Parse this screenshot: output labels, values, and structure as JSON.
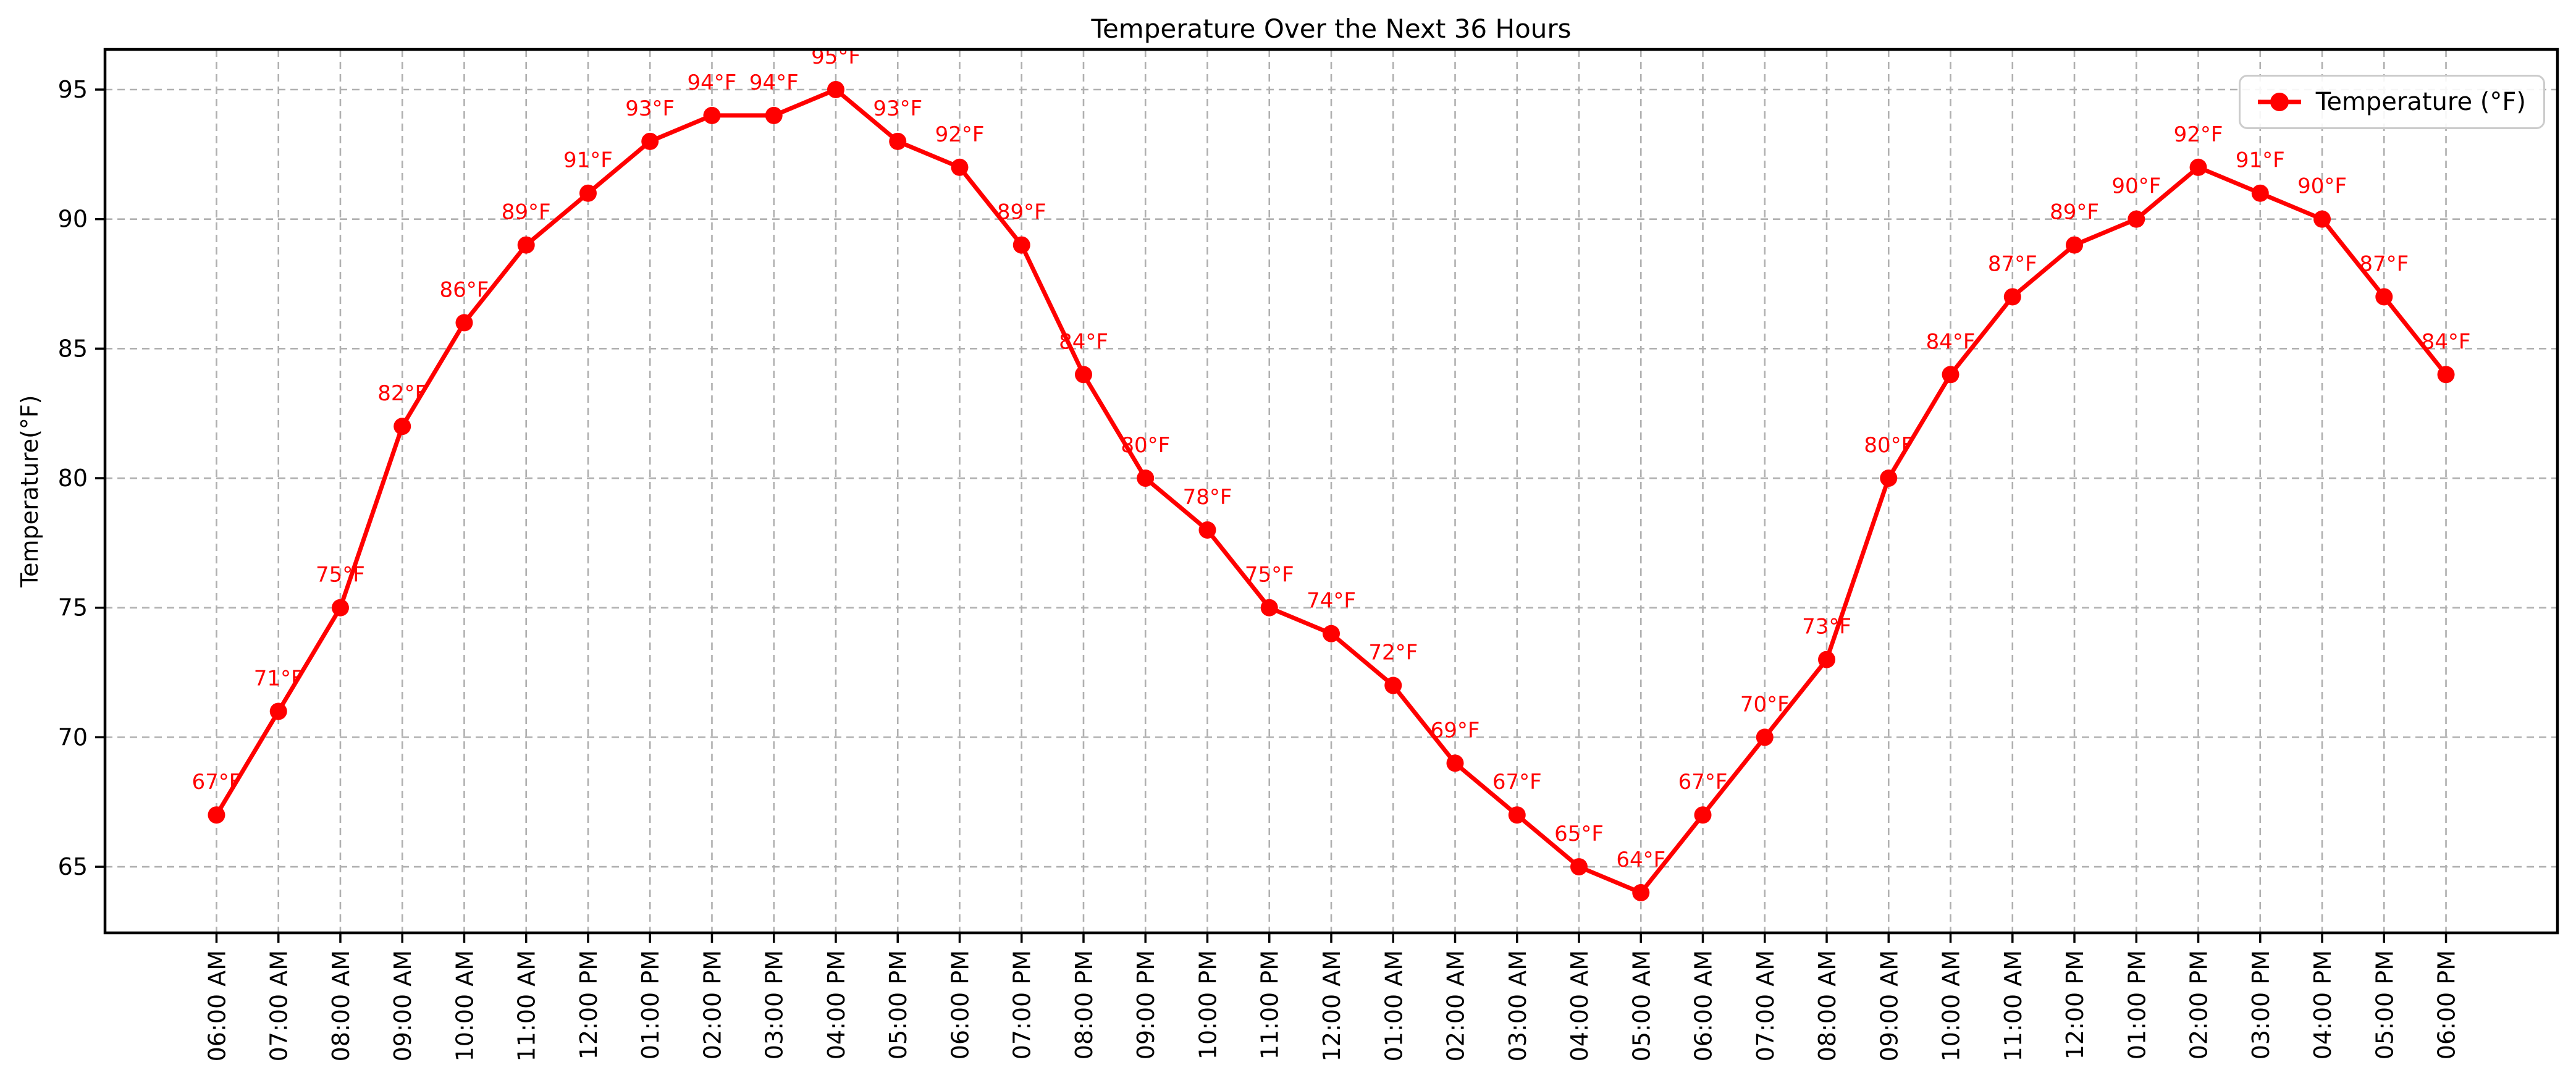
{
  "title": "Temperature Over the Next 36 Hours",
  "legend": {
    "label": "Temperature (°F)"
  },
  "colors": {
    "line": "#ff0000",
    "point_label": "#ff0000",
    "grid": "#b0b0b0",
    "axis": "#000000",
    "tick_text": "#000000",
    "legend_border": "#cccccc",
    "background": "#ffffff"
  },
  "chart_data": {
    "type": "line",
    "title": "Temperature Over the Next 36 Hours",
    "xlabel": "",
    "ylabel": "Temperature(°F)",
    "categories": [
      "06:00 AM",
      "07:00 AM",
      "08:00 AM",
      "09:00 AM",
      "10:00 AM",
      "11:00 AM",
      "12:00 PM",
      "01:00 PM",
      "02:00 PM",
      "03:00 PM",
      "04:00 PM",
      "05:00 PM",
      "06:00 PM",
      "07:00 PM",
      "08:00 PM",
      "09:00 PM",
      "10:00 PM",
      "11:00 PM",
      "12:00 AM",
      "01:00 AM",
      "02:00 AM",
      "03:00 AM",
      "04:00 AM",
      "05:00 AM",
      "06:00 AM",
      "07:00 AM",
      "08:00 AM",
      "09:00 AM",
      "10:00 AM",
      "11:00 AM",
      "12:00 PM",
      "01:00 PM",
      "02:00 PM",
      "03:00 PM",
      "04:00 PM",
      "05:00 PM",
      "06:00 PM"
    ],
    "series": [
      {
        "name": "Temperature (°F)",
        "marker": "circle",
        "color": "#ff0000",
        "values": [
          67,
          71,
          75,
          82,
          86,
          89,
          91,
          93,
          94,
          94,
          95,
          93,
          92,
          89,
          84,
          80,
          78,
          75,
          74,
          72,
          69,
          67,
          65,
          64,
          67,
          70,
          73,
          80,
          84,
          87,
          89,
          90,
          92,
          91,
          90,
          87,
          84
        ]
      }
    ],
    "point_labels": [
      "67°F",
      "71°F",
      "75°F",
      "82°F",
      "86°F",
      "89°F",
      "91°F",
      "93°F",
      "94°F",
      "94°F",
      "95°F",
      "93°F",
      "92°F",
      "89°F",
      "84°F",
      "80°F",
      "78°F",
      "75°F",
      "74°F",
      "72°F",
      "69°F",
      "67°F",
      "65°F",
      "64°F",
      "67°F",
      "70°F",
      "73°F",
      "80°F",
      "84°F",
      "87°F",
      "89°F",
      "90°F",
      "92°F",
      "91°F",
      "90°F",
      "87°F",
      "84°F"
    ],
    "yticks": [
      65,
      70,
      75,
      80,
      85,
      90,
      95
    ],
    "ylim": [
      62.45,
      96.55
    ],
    "grid": "dashed",
    "legend_position": "top-right"
  }
}
